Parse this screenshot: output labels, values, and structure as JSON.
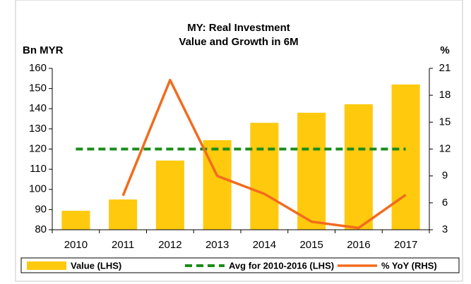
{
  "chart_data": {
    "type": "bar_line",
    "title": [
      "MY: Real Investment",
      "Value and Growth in 6M"
    ],
    "y_label": "Bn MYR",
    "y2_label": "%",
    "categories": [
      "2010",
      "2011",
      "2012",
      "2013",
      "2014",
      "2015",
      "2016",
      "2017"
    ],
    "series": [
      {
        "name": "Value (LHS)",
        "type": "bar",
        "color": "#ffc90e",
        "values": [
          89.4,
          95,
          114.3,
          124.4,
          133,
          138,
          142.2,
          152
        ]
      },
      {
        "name": "Avg for 2010-2016 (LHS)",
        "type": "dashed",
        "color": "#1a8c1a",
        "values": [
          120,
          120,
          120,
          120,
          120,
          120,
          120,
          120
        ]
      },
      {
        "name": "% YoY (RHS)",
        "type": "line",
        "axis": "y2",
        "color": "#f26b1d",
        "values": [
          null,
          6.8,
          19.7,
          9.0,
          7.0,
          3.9,
          3.2,
          6.9
        ]
      }
    ],
    "ylim": [
      80,
      160
    ],
    "yticks": [
      80,
      90,
      100,
      110,
      120,
      130,
      140,
      150,
      160
    ],
    "y2lim": [
      3,
      21
    ],
    "y2ticks": [
      3,
      6,
      9,
      12,
      15,
      18,
      21
    ],
    "legend": "bottom"
  }
}
